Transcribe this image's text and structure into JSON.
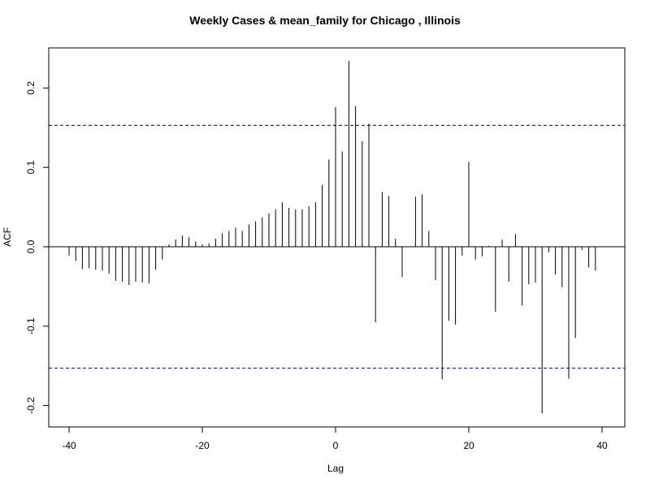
{
  "chart_data": {
    "type": "bar",
    "title": "Weekly Cases & mean_family for Chicago , Illinois",
    "xlabel": "Lag",
    "ylabel": "ACF",
    "xlim": [
      -42,
      43
    ],
    "ylim": [
      -0.227,
      0.251
    ],
    "x_ticks": [
      -40,
      -20,
      0,
      20,
      40
    ],
    "y_ticks": [
      -0.2,
      -0.1,
      0.0,
      0.1,
      0.2
    ],
    "x_tick_labels": [
      "-40",
      "-20",
      "0",
      "20",
      "40"
    ],
    "y_tick_labels": [
      "-0.2",
      "-0.1",
      "0.0",
      "0.1",
      "0.2"
    ],
    "confidence_bound": 0.153,
    "confidence_line_color": "#00008B",
    "grid": false,
    "lags": [
      -40,
      -39,
      -38,
      -37,
      -36,
      -35,
      -34,
      -33,
      -32,
      -31,
      -30,
      -29,
      -28,
      -27,
      -26,
      -25,
      -24,
      -23,
      -22,
      -21,
      -20,
      -19,
      -18,
      -17,
      -16,
      -15,
      -14,
      -13,
      -12,
      -11,
      -10,
      -9,
      -8,
      -7,
      -6,
      -5,
      -4,
      -3,
      -2,
      -1,
      0,
      1,
      2,
      3,
      4,
      5,
      6,
      7,
      8,
      9,
      10,
      11,
      12,
      13,
      14,
      15,
      16,
      17,
      18,
      19,
      20,
      21,
      22,
      23,
      24,
      25,
      26,
      27,
      28,
      29,
      30,
      31,
      32,
      33,
      34,
      35,
      36,
      37,
      38,
      39
    ],
    "acf": [
      -0.011,
      -0.018,
      -0.028,
      -0.027,
      -0.029,
      -0.03,
      -0.034,
      -0.043,
      -0.044,
      -0.048,
      -0.044,
      -0.045,
      -0.046,
      -0.029,
      -0.016,
      0.003,
      0.009,
      0.014,
      0.012,
      0.007,
      0.003,
      0.004,
      0.01,
      0.017,
      0.02,
      0.024,
      0.02,
      0.028,
      0.032,
      0.037,
      0.042,
      0.047,
      0.056,
      0.049,
      0.047,
      0.047,
      0.051,
      0.056,
      0.078,
      0.11,
      0.176,
      0.12,
      0.234,
      0.177,
      0.133,
      0.155,
      -0.095,
      0.069,
      0.064,
      0.01,
      -0.038,
      0.0,
      0.063,
      0.066,
      0.02,
      -0.042,
      -0.167,
      -0.093,
      -0.098,
      -0.011,
      0.107,
      -0.016,
      -0.012,
      0.001,
      -0.082,
      0.009,
      -0.044,
      0.016,
      -0.074,
      -0.047,
      -0.045,
      -0.21,
      -0.007,
      -0.035,
      -0.051,
      -0.166,
      -0.115,
      -0.004,
      -0.026,
      -0.03
    ]
  }
}
